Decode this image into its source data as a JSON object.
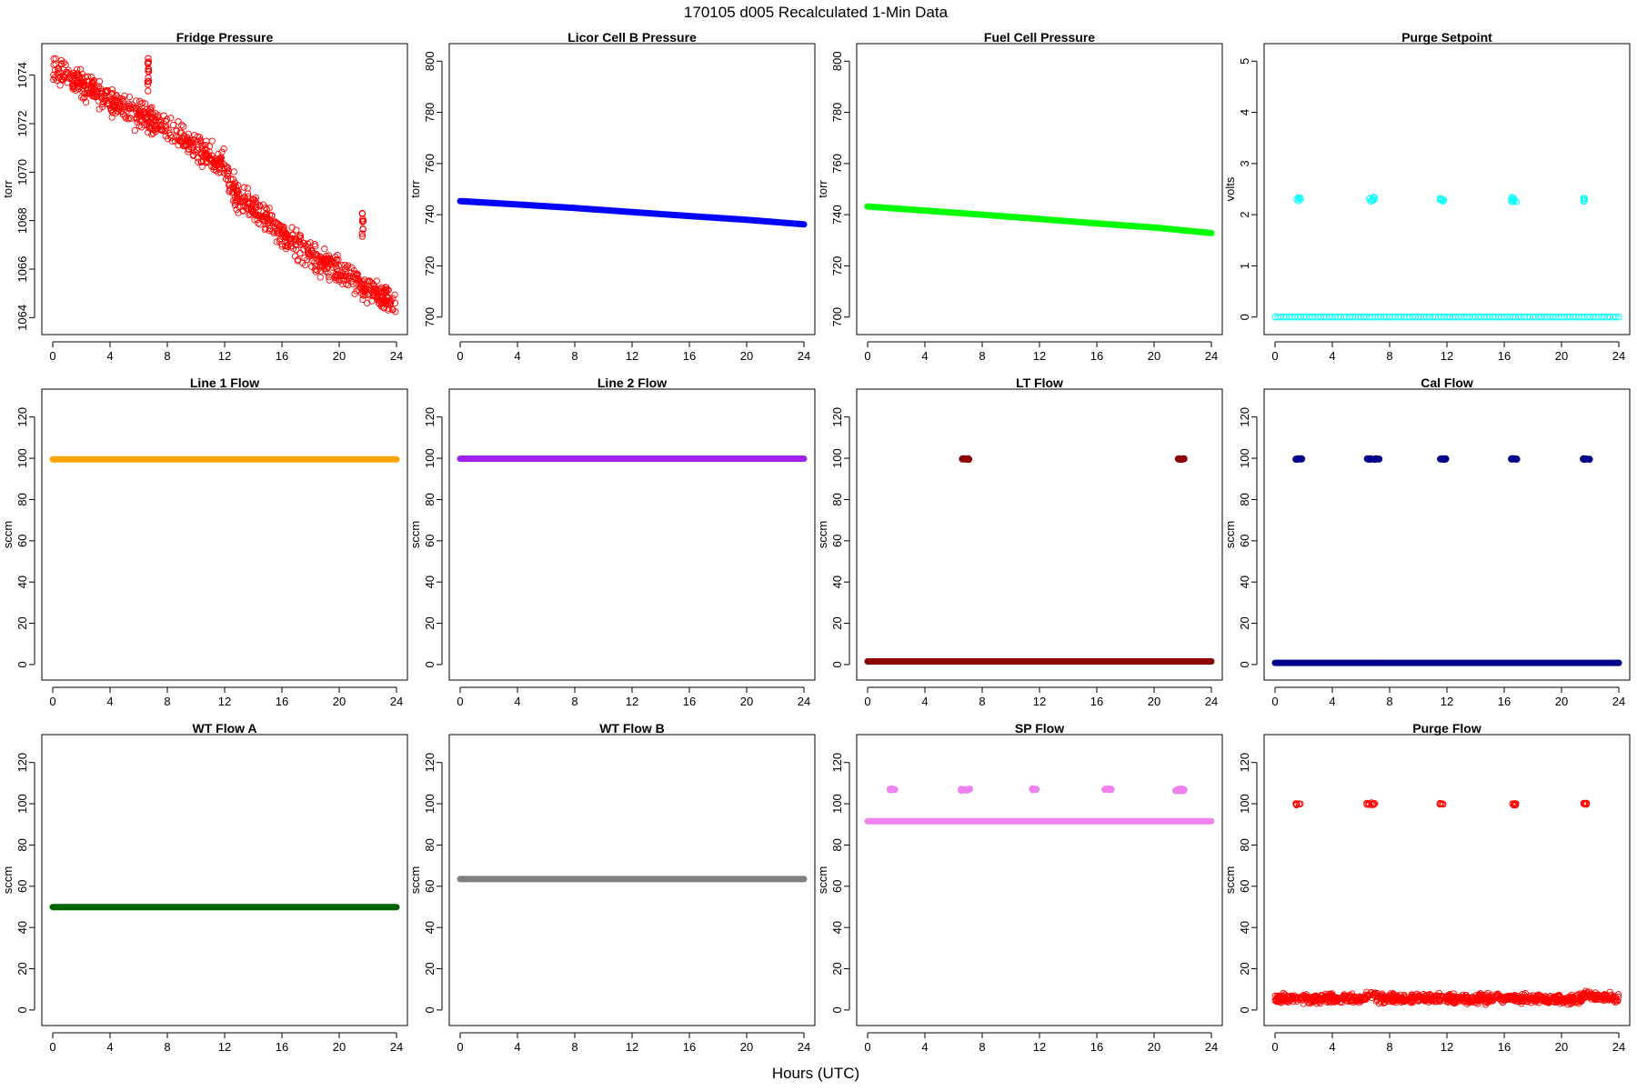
{
  "figure": {
    "title": "170105   d005   Recalculated 1-Min Data",
    "xlabel": "Hours (UTC)"
  },
  "chart_data": [
    {
      "type": "scatter",
      "title": "Fridge Pressure",
      "ylabel": "torr",
      "xlim": [
        0,
        24
      ],
      "xticks": [
        0,
        4,
        8,
        12,
        16,
        20,
        24
      ],
      "ylim": [
        1063.6,
        1075.0
      ],
      "yticks": [
        1064,
        1066,
        1068,
        1070,
        1072,
        1074
      ],
      "grid": false,
      "color": "#ff0000",
      "marker": "open-circle",
      "series": [
        {
          "kind": "trend",
          "x": [
            0,
            1,
            2,
            3,
            4,
            5,
            6,
            7,
            8,
            9,
            10,
            11,
            11.9,
            12.3,
            13,
            14,
            15,
            16,
            17,
            18,
            19,
            20,
            21,
            22,
            23,
            24
          ],
          "y": [
            1074.3,
            1074.0,
            1073.6,
            1073.3,
            1072.9,
            1072.6,
            1072.3,
            1072.1,
            1071.8,
            1071.4,
            1071.0,
            1070.6,
            1070.4,
            1069.6,
            1069.0,
            1068.5,
            1068.0,
            1067.5,
            1067.0,
            1066.6,
            1066.2,
            1065.9,
            1065.6,
            1065.2,
            1064.8,
            1064.5
          ],
          "spread": 0.55
        },
        {
          "kind": "cluster",
          "x": [
            6.6,
            6.7
          ],
          "y": [
            1073.3,
            1074.9
          ],
          "n": 14
        },
        {
          "kind": "cluster",
          "x": [
            21.6,
            21.7
          ],
          "y": [
            1067.0,
            1068.5
          ],
          "n": 10
        }
      ]
    },
    {
      "type": "scatter",
      "title": "Licor Cell B Pressure",
      "ylabel": "torr",
      "xlim": [
        0,
        24
      ],
      "xticks": [
        0,
        4,
        8,
        12,
        16,
        20,
        24
      ],
      "ylim": [
        696,
        804
      ],
      "yticks": [
        700,
        720,
        740,
        760,
        780,
        800
      ],
      "grid": false,
      "color": "#0000ff",
      "marker": "filled-band",
      "series": [
        {
          "kind": "line",
          "x": [
            0,
            4,
            8,
            12,
            16,
            20,
            24
          ],
          "y": [
            745.3,
            744.0,
            742.6,
            741.0,
            739.5,
            738.0,
            736.2
          ]
        }
      ]
    },
    {
      "type": "scatter",
      "title": "Fuel Cell Pressure",
      "ylabel": "torr",
      "xlim": [
        0,
        24
      ],
      "xticks": [
        0,
        4,
        8,
        12,
        16,
        20,
        24
      ],
      "ylim": [
        696,
        804
      ],
      "yticks": [
        700,
        720,
        740,
        760,
        780,
        800
      ],
      "grid": false,
      "color": "#00ff00",
      "marker": "filled-band",
      "series": [
        {
          "kind": "line",
          "x": [
            0,
            4,
            8,
            12,
            16,
            20,
            24
          ],
          "y": [
            743.2,
            741.6,
            740.0,
            738.3,
            736.6,
            735.0,
            732.8
          ]
        }
      ]
    },
    {
      "type": "scatter",
      "title": "Purge Setpoint",
      "ylabel": "volts",
      "xlim": [
        0,
        24
      ],
      "xticks": [
        0,
        4,
        8,
        12,
        16,
        20,
        24
      ],
      "ylim": [
        -0.2,
        5.2
      ],
      "yticks": [
        0,
        1,
        2,
        3,
        4,
        5
      ],
      "grid": false,
      "color": "#00ffff",
      "marker": "open-circle",
      "series": [
        {
          "kind": "line",
          "x": [
            0,
            24
          ],
          "y": [
            0,
            0
          ]
        },
        {
          "kind": "cluster",
          "x": [
            1.5,
            1.8
          ],
          "y": [
            2.25,
            2.33
          ],
          "n": 6
        },
        {
          "kind": "cluster",
          "x": [
            6.5,
            7.0
          ],
          "y": [
            2.25,
            2.35
          ],
          "n": 8
        },
        {
          "kind": "cluster",
          "x": [
            11.5,
            11.8
          ],
          "y": [
            2.25,
            2.33
          ],
          "n": 6
        },
        {
          "kind": "cluster",
          "x": [
            16.5,
            16.9
          ],
          "y": [
            2.25,
            2.35
          ],
          "n": 8
        },
        {
          "kind": "cluster",
          "x": [
            21.5,
            21.8
          ],
          "y": [
            2.25,
            2.32
          ],
          "n": 6
        }
      ]
    },
    {
      "type": "scatter",
      "title": "Line 1 Flow",
      "ylabel": "sccm",
      "xlim": [
        0,
        24
      ],
      "xticks": [
        0,
        4,
        8,
        12,
        16,
        20,
        24
      ],
      "ylim": [
        -4,
        130
      ],
      "yticks": [
        0,
        20,
        40,
        60,
        80,
        100,
        120
      ],
      "grid": false,
      "color": "#ffa500",
      "marker": "filled-band",
      "series": [
        {
          "kind": "line",
          "x": [
            0,
            24
          ],
          "y": [
            99.5,
            99.5
          ]
        }
      ]
    },
    {
      "type": "scatter",
      "title": "Line 2 Flow",
      "ylabel": "sccm",
      "xlim": [
        0,
        24
      ],
      "xticks": [
        0,
        4,
        8,
        12,
        16,
        20,
        24
      ],
      "ylim": [
        -4,
        130
      ],
      "yticks": [
        0,
        20,
        40,
        60,
        80,
        100,
        120
      ],
      "grid": false,
      "color": "#a020f0",
      "marker": "filled-band",
      "series": [
        {
          "kind": "line",
          "x": [
            0,
            24
          ],
          "y": [
            99.8,
            99.8
          ]
        }
      ]
    },
    {
      "type": "scatter",
      "title": "LT Flow",
      "ylabel": "sccm",
      "xlim": [
        0,
        24
      ],
      "xticks": [
        0,
        4,
        8,
        12,
        16,
        20,
        24
      ],
      "ylim": [
        -4,
        130
      ],
      "yticks": [
        0,
        20,
        40,
        60,
        80,
        100,
        120
      ],
      "grid": false,
      "color": "#8b0000",
      "marker": "filled-band",
      "series": [
        {
          "kind": "line",
          "x": [
            0,
            24
          ],
          "y": [
            1.5,
            1.5
          ]
        },
        {
          "kind": "cluster",
          "x": [
            6.6,
            7.1
          ],
          "y": [
            99.5,
            99.8
          ],
          "n": 8
        },
        {
          "kind": "cluster",
          "x": [
            21.6,
            22.1
          ],
          "y": [
            99.5,
            99.8
          ],
          "n": 8
        }
      ]
    },
    {
      "type": "scatter",
      "title": "Cal Flow",
      "ylabel": "sccm",
      "xlim": [
        0,
        24
      ],
      "xticks": [
        0,
        4,
        8,
        12,
        16,
        20,
        24
      ],
      "ylim": [
        -4,
        130
      ],
      "yticks": [
        0,
        20,
        40,
        60,
        80,
        100,
        120
      ],
      "grid": false,
      "color": "#00008b",
      "marker": "filled-band",
      "series": [
        {
          "kind": "line",
          "x": [
            0,
            24
          ],
          "y": [
            0.8,
            0.8
          ]
        },
        {
          "kind": "cluster",
          "x": [
            1.4,
            1.9
          ],
          "y": [
            99.5,
            99.8
          ],
          "n": 8
        },
        {
          "kind": "cluster",
          "x": [
            6.4,
            7.3
          ],
          "y": [
            99.5,
            99.8
          ],
          "n": 12
        },
        {
          "kind": "cluster",
          "x": [
            11.5,
            12.0
          ],
          "y": [
            99.5,
            99.8
          ],
          "n": 8
        },
        {
          "kind": "cluster",
          "x": [
            16.5,
            17.0
          ],
          "y": [
            99.5,
            99.8
          ],
          "n": 8
        },
        {
          "kind": "cluster",
          "x": [
            21.5,
            22.0
          ],
          "y": [
            99.5,
            99.8
          ],
          "n": 8
        }
      ]
    },
    {
      "type": "scatter",
      "title": "WT Flow A",
      "ylabel": "sccm",
      "xlim": [
        0,
        24
      ],
      "xticks": [
        0,
        4,
        8,
        12,
        16,
        20,
        24
      ],
      "ylim": [
        -4,
        130
      ],
      "yticks": [
        0,
        20,
        40,
        60,
        80,
        100,
        120
      ],
      "grid": false,
      "color": "#006400",
      "marker": "filled-band",
      "series": [
        {
          "kind": "line",
          "x": [
            0,
            24
          ],
          "y": [
            49.9,
            49.9
          ]
        }
      ]
    },
    {
      "type": "scatter",
      "title": "WT Flow B",
      "ylabel": "sccm",
      "xlim": [
        0,
        24
      ],
      "xticks": [
        0,
        4,
        8,
        12,
        16,
        20,
        24
      ],
      "ylim": [
        -4,
        130
      ],
      "yticks": [
        0,
        20,
        40,
        60,
        80,
        100,
        120
      ],
      "grid": false,
      "color": "#808080",
      "marker": "filled-band",
      "series": [
        {
          "kind": "line",
          "x": [
            0,
            24
          ],
          "y": [
            63.5,
            63.5
          ]
        }
      ]
    },
    {
      "type": "scatter",
      "title": "SP Flow",
      "ylabel": "sccm",
      "xlim": [
        0,
        24
      ],
      "xticks": [
        0,
        4,
        8,
        12,
        16,
        20,
        24
      ],
      "ylim": [
        -4,
        130
      ],
      "yticks": [
        0,
        20,
        40,
        60,
        80,
        100,
        120
      ],
      "grid": false,
      "color": "#ee82ee",
      "marker": "filled-band",
      "series": [
        {
          "kind": "line",
          "x": [
            0,
            24
          ],
          "y": [
            91.5,
            91.5
          ]
        },
        {
          "kind": "cluster",
          "x": [
            1.4,
            1.9
          ],
          "y": [
            106.8,
            107.2
          ],
          "n": 8
        },
        {
          "kind": "cluster",
          "x": [
            6.5,
            7.2
          ],
          "y": [
            106.5,
            107.2
          ],
          "n": 10
        },
        {
          "kind": "cluster",
          "x": [
            11.5,
            11.9
          ],
          "y": [
            106.8,
            107.2
          ],
          "n": 8
        },
        {
          "kind": "cluster",
          "x": [
            16.5,
            17.0
          ],
          "y": [
            106.8,
            107.2
          ],
          "n": 8
        },
        {
          "kind": "cluster",
          "x": [
            21.5,
            22.1
          ],
          "y": [
            106.3,
            107.2
          ],
          "n": 10
        }
      ]
    },
    {
      "type": "scatter",
      "title": "Purge Flow",
      "ylabel": "sccm",
      "xlim": [
        0,
        24
      ],
      "xticks": [
        0,
        4,
        8,
        12,
        16,
        20,
        24
      ],
      "ylim": [
        -4,
        130
      ],
      "yticks": [
        0,
        20,
        40,
        60,
        80,
        100,
        120
      ],
      "grid": false,
      "color": "#ff0000",
      "marker": "open-circle",
      "series": [
        {
          "kind": "trend",
          "x": [
            0,
            6.3,
            6.6,
            6.9,
            7.2,
            21.4,
            21.7,
            22.0,
            24
          ],
          "y": [
            5.5,
            5.5,
            8.5,
            8.0,
            5.5,
            5.5,
            8.0,
            7.0,
            5.5
          ],
          "spread": 2.2
        },
        {
          "kind": "cluster",
          "x": [
            1.4,
            1.8
          ],
          "y": [
            99.3,
            100.3
          ],
          "n": 7
        },
        {
          "kind": "cluster",
          "x": [
            6.4,
            7.0
          ],
          "y": [
            99.0,
            100.5
          ],
          "n": 9
        },
        {
          "kind": "cluster",
          "x": [
            11.5,
            11.8
          ],
          "y": [
            99.5,
            100.3
          ],
          "n": 6
        },
        {
          "kind": "cluster",
          "x": [
            16.5,
            16.9
          ],
          "y": [
            99.3,
            100.3
          ],
          "n": 7
        },
        {
          "kind": "cluster",
          "x": [
            21.5,
            21.8
          ],
          "y": [
            99.3,
            100.3
          ],
          "n": 7
        }
      ]
    }
  ]
}
